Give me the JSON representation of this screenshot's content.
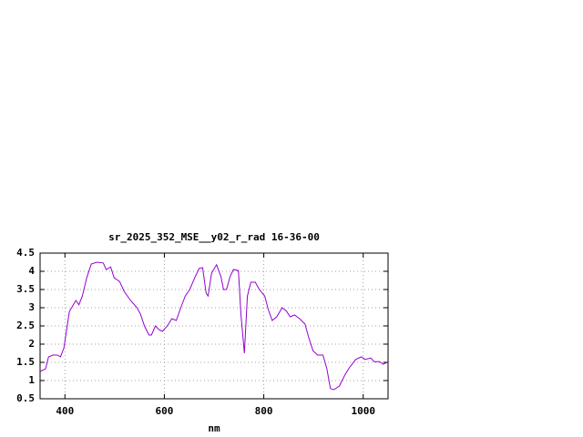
{
  "chart_data": {
    "type": "line",
    "title": "sr_2025_352_MSE__y02_r_rad 16-36-00",
    "x_label": "nm",
    "xlim": [
      350,
      1050
    ],
    "xticks": [
      400,
      600,
      800,
      1000
    ],
    "ylim": [
      0.5,
      4.5
    ],
    "yticks": [
      0.5,
      1,
      1.5,
      2,
      2.5,
      3,
      3.5,
      4,
      4.5
    ],
    "grid": true,
    "series": [
      {
        "color": "#9400d3",
        "x": [
          350,
          361,
          367,
          376,
          385,
          391,
          398,
          404,
          409,
          422,
          428,
          435,
          444,
          453,
          464,
          477,
          483,
          492,
          499,
          510,
          519,
          532,
          545,
          552,
          560,
          569,
          574,
          582,
          589,
          596,
          606,
          615,
          624,
          633,
          642,
          651,
          661,
          670,
          677,
          684,
          688,
          695,
          705,
          714,
          719,
          725,
          732,
          739,
          749,
          754,
          761,
          767,
          774,
          783,
          791,
          802,
          809,
          817,
          826,
          837,
          846,
          853,
          862,
          872,
          883,
          890,
          899,
          908,
          919,
          927,
          934,
          941,
          952,
          963,
          972,
          985,
          996,
          1004,
          1015,
          1022,
          1033,
          1040,
          1048
        ],
        "values": [
          1.25,
          1.32,
          1.65,
          1.7,
          1.7,
          1.65,
          1.9,
          2.45,
          2.9,
          3.2,
          3.08,
          3.32,
          3.83,
          4.2,
          4.25,
          4.23,
          4.05,
          4.12,
          3.82,
          3.72,
          3.45,
          3.2,
          3.0,
          2.82,
          2.5,
          2.25,
          2.25,
          2.5,
          2.4,
          2.35,
          2.5,
          2.7,
          2.65,
          3.0,
          3.32,
          3.5,
          3.82,
          4.08,
          4.1,
          3.4,
          3.32,
          3.95,
          4.18,
          3.85,
          3.5,
          3.5,
          3.85,
          4.05,
          4.02,
          2.82,
          1.75,
          3.32,
          3.7,
          3.7,
          3.5,
          3.32,
          2.95,
          2.65,
          2.75,
          3.0,
          2.9,
          2.75,
          2.8,
          2.7,
          2.55,
          2.2,
          1.82,
          1.7,
          1.7,
          1.32,
          0.78,
          0.75,
          0.85,
          1.15,
          1.35,
          1.58,
          1.65,
          1.58,
          1.62,
          1.52,
          1.52,
          1.45,
          1.5
        ]
      }
    ]
  }
}
